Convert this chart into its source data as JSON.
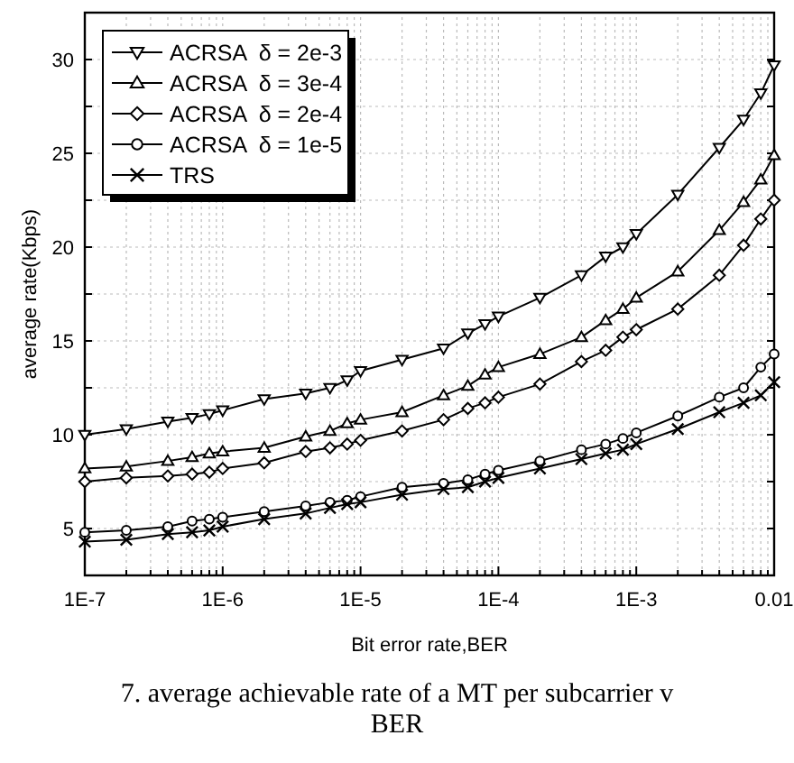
{
  "chart_data": {
    "type": "line",
    "xlabel": "Bit error rate,BER",
    "ylabel": "average rate(Kbps)",
    "log": "x",
    "x": [
      1e-07,
      2e-07,
      4e-07,
      6e-07,
      8e-07,
      1e-06,
      2e-06,
      4e-06,
      6e-06,
      8e-06,
      1e-05,
      2e-05,
      4e-05,
      6e-05,
      8e-05,
      0.0001,
      0.0002,
      0.0004,
      0.0006,
      0.0008,
      0.001,
      0.002,
      0.004,
      0.006,
      0.008,
      0.01
    ],
    "xlim": [
      1e-07,
      0.01
    ],
    "xticks": [
      {
        "value": 1e-07,
        "label": "1E-7"
      },
      {
        "value": 2e-07,
        "label": null
      },
      {
        "value": 3e-07,
        "label": null
      },
      {
        "value": 4e-07,
        "label": null
      },
      {
        "value": 5e-07,
        "label": null
      },
      {
        "value": 6e-07,
        "label": null
      },
      {
        "value": 7e-07,
        "label": null
      },
      {
        "value": 8e-07,
        "label": null
      },
      {
        "value": 9e-07,
        "label": null
      },
      {
        "value": 1e-06,
        "label": "1E-6"
      },
      {
        "value": 2e-06,
        "label": null
      },
      {
        "value": 3e-06,
        "label": null
      },
      {
        "value": 4e-06,
        "label": null
      },
      {
        "value": 5e-06,
        "label": null
      },
      {
        "value": 6e-06,
        "label": null
      },
      {
        "value": 7e-06,
        "label": null
      },
      {
        "value": 8e-06,
        "label": null
      },
      {
        "value": 9e-06,
        "label": null
      },
      {
        "value": 1e-05,
        "label": "1E-5"
      },
      {
        "value": 2e-05,
        "label": null
      },
      {
        "value": 3e-05,
        "label": null
      },
      {
        "value": 4e-05,
        "label": null
      },
      {
        "value": 5e-05,
        "label": null
      },
      {
        "value": 6e-05,
        "label": null
      },
      {
        "value": 7e-05,
        "label": null
      },
      {
        "value": 8e-05,
        "label": null
      },
      {
        "value": 9e-05,
        "label": null
      },
      {
        "value": 0.0001,
        "label": "1E-4"
      },
      {
        "value": 0.0002,
        "label": null
      },
      {
        "value": 0.0003,
        "label": null
      },
      {
        "value": 0.0004,
        "label": null
      },
      {
        "value": 0.0005,
        "label": null
      },
      {
        "value": 0.0006,
        "label": null
      },
      {
        "value": 0.0007,
        "label": null
      },
      {
        "value": 0.0008,
        "label": null
      },
      {
        "value": 0.0009,
        "label": null
      },
      {
        "value": 0.001,
        "label": "1E-3"
      },
      {
        "value": 0.002,
        "label": null
      },
      {
        "value": 0.003,
        "label": null
      },
      {
        "value": 0.004,
        "label": null
      },
      {
        "value": 0.005,
        "label": null
      },
      {
        "value": 0.006,
        "label": null
      },
      {
        "value": 0.007,
        "label": null
      },
      {
        "value": 0.008,
        "label": null
      },
      {
        "value": 0.009,
        "label": null
      },
      0.01
    ],
    "ylim": [
      2.5,
      32.5
    ],
    "yticks": [
      {
        "value": 2.5,
        "label": null
      },
      5,
      {
        "value": 7.5,
        "label": null
      },
      10,
      {
        "value": 12.5,
        "label": null
      },
      15,
      {
        "value": 17.5,
        "label": null
      },
      20,
      {
        "value": 22.5,
        "label": null
      },
      25,
      {
        "value": 27.5,
        "label": null
      },
      30,
      {
        "value": 32.5,
        "label": null
      }
    ],
    "grid": true,
    "legend": "top left",
    "line_style": "solid",
    "series": [
      {
        "name": "ACRSA  δ = 2e-3",
        "color": "#000000",
        "marker": "triangle-down",
        "values": [
          10.0,
          10.3,
          10.7,
          10.9,
          11.1,
          11.3,
          11.9,
          12.2,
          12.5,
          12.9,
          13.4,
          14.0,
          14.6,
          15.4,
          15.9,
          16.3,
          17.3,
          18.5,
          19.5,
          20.0,
          20.7,
          22.8,
          25.3,
          26.8,
          28.2,
          29.7
        ]
      },
      {
        "name": "ACRSA  δ = 3e-4",
        "color": "#000000",
        "marker": "triangle",
        "values": [
          8.2,
          8.3,
          8.6,
          8.8,
          9.0,
          9.1,
          9.3,
          9.9,
          10.2,
          10.6,
          10.8,
          11.2,
          12.1,
          12.6,
          13.2,
          13.6,
          14.3,
          15.2,
          16.1,
          16.7,
          17.3,
          18.7,
          20.9,
          22.4,
          23.6,
          24.9
        ]
      },
      {
        "name": "ACRSA  δ = 2e-4",
        "color": "#000000",
        "marker": "diamond",
        "values": [
          7.5,
          7.7,
          7.8,
          7.9,
          8.0,
          8.2,
          8.5,
          9.1,
          9.3,
          9.5,
          9.7,
          10.2,
          10.8,
          11.4,
          11.7,
          12.0,
          12.7,
          13.9,
          14.5,
          15.2,
          15.6,
          16.7,
          18.5,
          20.1,
          21.5,
          22.5
        ]
      },
      {
        "name": "ACRSA  δ = 1e-5",
        "color": "#000000",
        "marker": "circle",
        "values": [
          4.8,
          4.9,
          5.1,
          5.4,
          5.5,
          5.6,
          5.9,
          6.2,
          6.4,
          6.5,
          6.7,
          7.2,
          7.4,
          7.6,
          7.9,
          8.1,
          8.6,
          9.2,
          9.5,
          9.8,
          10.1,
          11.0,
          12.0,
          12.5,
          13.6,
          14.3
        ]
      },
      {
        "name": "TRS",
        "color": "#000000",
        "marker": "cross",
        "values": [
          4.3,
          4.4,
          4.7,
          4.8,
          4.9,
          5.1,
          5.5,
          5.8,
          6.1,
          6.3,
          6.4,
          6.8,
          7.1,
          7.2,
          7.5,
          7.7,
          8.2,
          8.7,
          9.0,
          9.2,
          9.5,
          10.3,
          11.2,
          11.7,
          12.1,
          12.8
        ]
      }
    ],
    "annotations": [
      "7.   average achievable rate of a MT per subcarrier v BER"
    ]
  }
}
